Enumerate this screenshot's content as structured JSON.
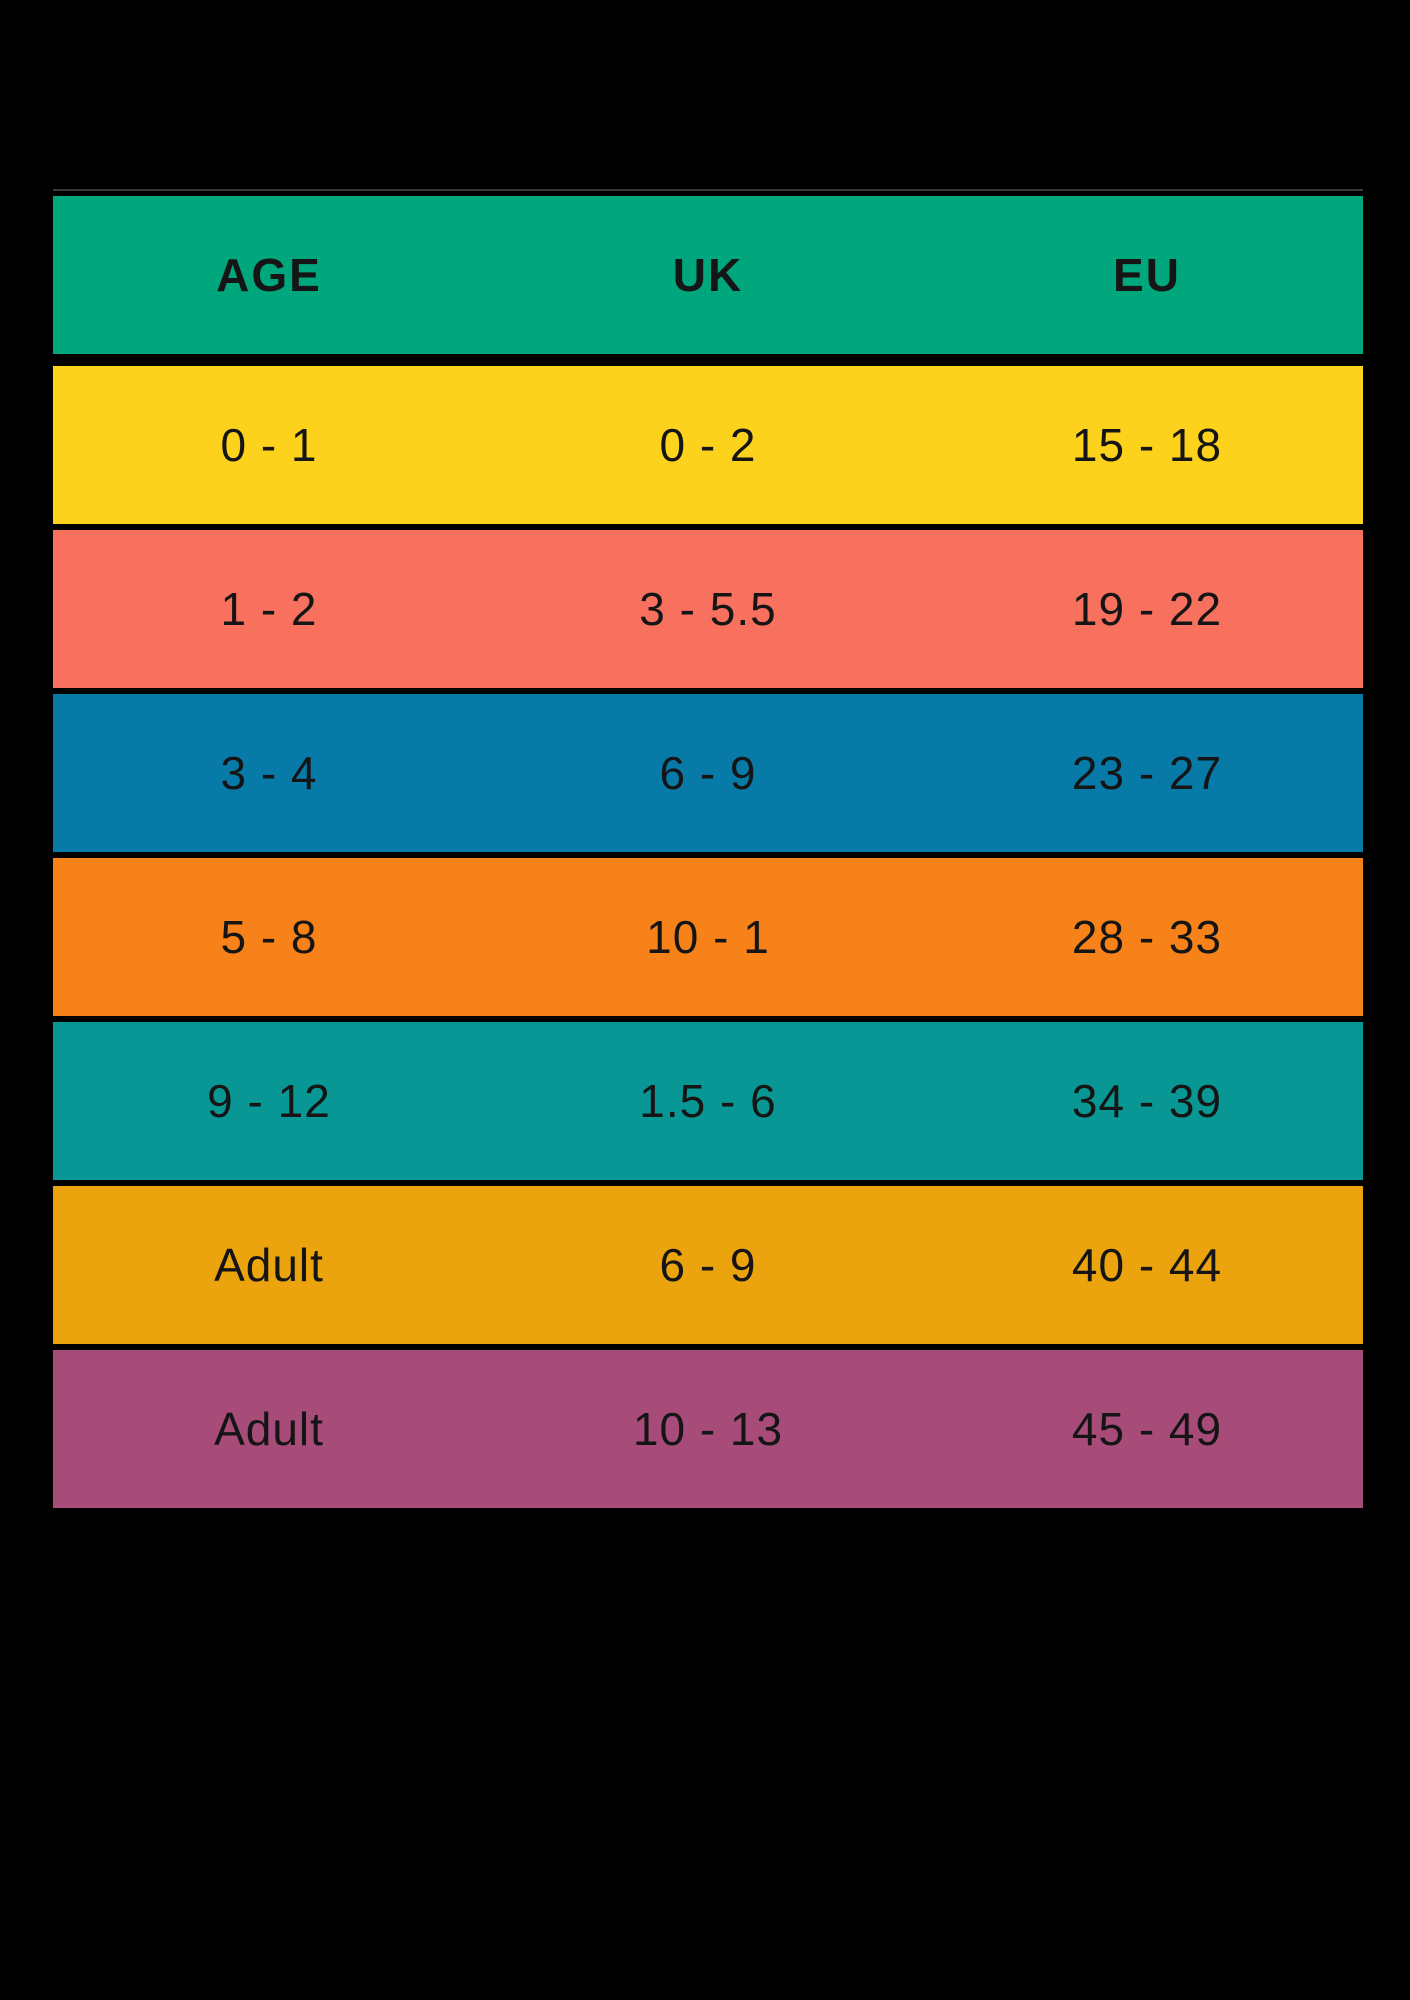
{
  "page": {
    "background": "#000000",
    "table_top_rule_color": "#3a3a3a",
    "text_color": "#151515"
  },
  "table": {
    "header_bg": "#00a77d",
    "columns": [
      "AGE",
      "UK",
      "EU"
    ],
    "rows": [
      {
        "age": "0 - 1",
        "uk": "0 - 2",
        "eu": "15 - 18",
        "bg": "#fcd21d"
      },
      {
        "age": "1 - 2",
        "uk": "3 - 5.5",
        "eu": "19 - 22",
        "bg": "#f8715e"
      },
      {
        "age": "3 - 4",
        "uk": "6 - 9",
        "eu": "23 - 27",
        "bg": "#077aa8"
      },
      {
        "age": "5 - 8",
        "uk": "10 - 1",
        "eu": "28 - 33",
        "bg": "#f8821a"
      },
      {
        "age": "9 - 12",
        "uk": "1.5 - 6",
        "eu": "34 - 39",
        "bg": "#089795"
      },
      {
        "age": "Adult",
        "uk": "6 - 9",
        "eu": "40 - 44",
        "bg": "#eba40e"
      },
      {
        "age": "Adult",
        "uk": "10 - 13",
        "eu": "45 - 49",
        "bg": "#a74b79"
      }
    ]
  },
  "chart_data": {
    "type": "table",
    "title": "",
    "columns": [
      "AGE",
      "UK",
      "EU"
    ],
    "rows": [
      [
        "0 - 1",
        "0 - 2",
        "15 - 18"
      ],
      [
        "1 - 2",
        "3 - 5.5",
        "19 - 22"
      ],
      [
        "3 - 4",
        "6 - 9",
        "23 - 27"
      ],
      [
        "5 - 8",
        "10 - 1",
        "28 - 33"
      ],
      [
        "9 - 12",
        "1.5 - 6",
        "34 - 39"
      ],
      [
        "Adult",
        "6 - 9",
        "40 - 44"
      ],
      [
        "Adult",
        "10 - 13",
        "45 - 49"
      ]
    ],
    "row_colors": [
      "#00a77d",
      "#fcd21d",
      "#f8715e",
      "#077aa8",
      "#f8821a",
      "#089795",
      "#eba40e",
      "#a74b79"
    ],
    "legend_position": "none",
    "grid": false
  }
}
